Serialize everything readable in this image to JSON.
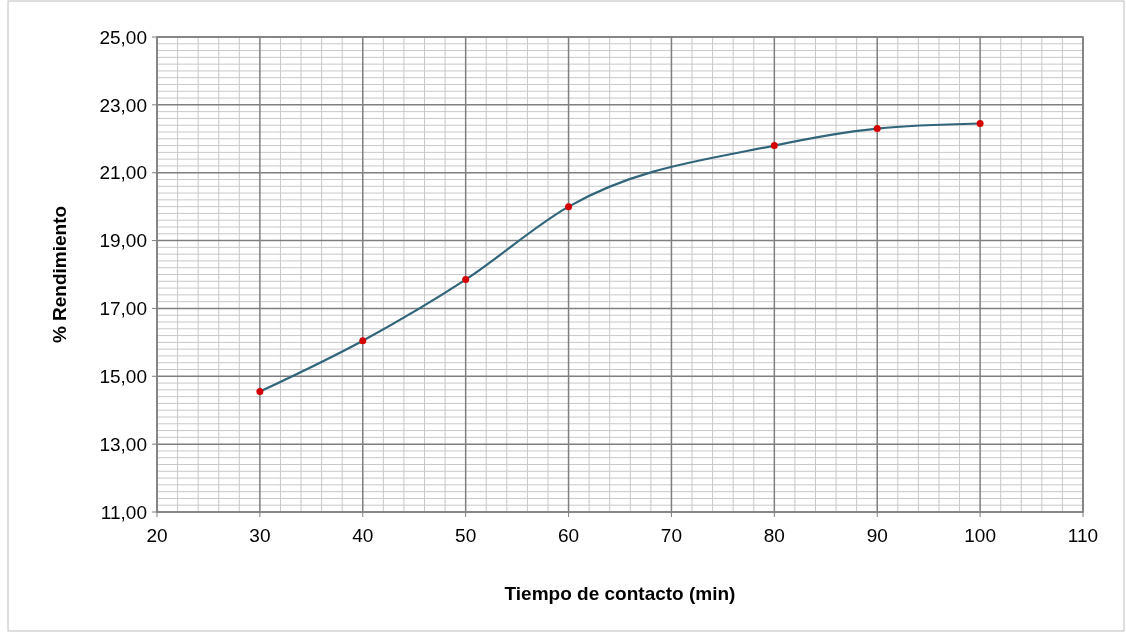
{
  "chart_data": {
    "type": "line",
    "xlabel": "Tiempo de contacto (min)",
    "ylabel": "% Rendimiento",
    "x": [
      30,
      40,
      50,
      60,
      80,
      90,
      100
    ],
    "series": [
      {
        "color": "#31667a",
        "colors": [
          "#d40000",
          "#d40000",
          "#d40000",
          "#d40000",
          "#d40000",
          "#d40000",
          "#d40000"
        ],
        "values": [
          14.55,
          16.05,
          17.85,
          20.0,
          21.8,
          22.3,
          22.45
        ]
      }
    ],
    "marker": "circle",
    "line_style": "solid",
    "xlim": [
      20,
      110
    ],
    "xticks": [
      20,
      30,
      40,
      50,
      60,
      70,
      80,
      90,
      100,
      110
    ],
    "ylim": [
      11,
      25
    ],
    "yticks": [
      {
        "value": 11,
        "label": "11,00"
      },
      {
        "value": 13,
        "label": "13,00"
      },
      {
        "value": 15,
        "label": "15,00"
      },
      {
        "value": 17,
        "label": "17,00"
      },
      {
        "value": 19,
        "label": "19,00"
      },
      {
        "value": 21,
        "label": "21,00"
      },
      {
        "value": 23,
        "label": "23,00"
      },
      {
        "value": 25,
        "label": "25,00"
      }
    ],
    "grid": true
  }
}
